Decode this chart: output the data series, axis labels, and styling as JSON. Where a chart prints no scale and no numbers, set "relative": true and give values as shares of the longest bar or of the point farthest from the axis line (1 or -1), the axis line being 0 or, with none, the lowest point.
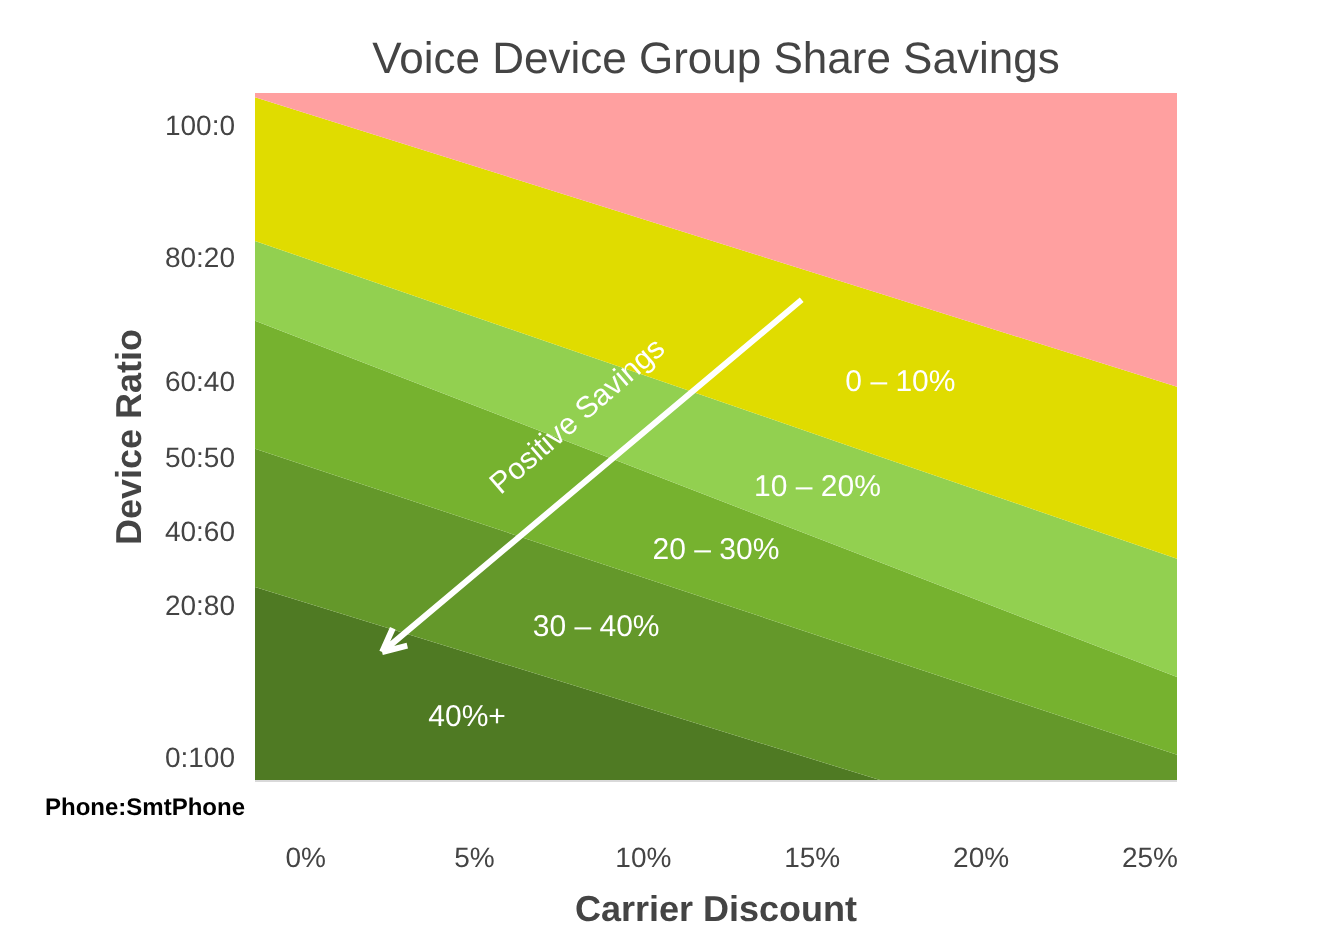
{
  "chart_data": {
    "type": "area",
    "stacked": true,
    "relative": true,
    "title": "Voice Device Group Share Savings",
    "xlabel": "Carrier Discount",
    "ylabel": "Device Ratio",
    "x": [
      -1.5,
      17.1,
      25.8
    ],
    "xlim": [
      -1.5,
      25.8
    ],
    "xticks": [
      {
        "value": 0,
        "label": "0%"
      },
      {
        "value": 5,
        "label": "5%"
      },
      {
        "value": 10,
        "label": "10%"
      },
      {
        "value": 15,
        "label": "15%"
      },
      {
        "value": 20,
        "label": "20%"
      },
      {
        "value": 25,
        "label": "25%"
      }
    ],
    "series": [
      {
        "name": "40%+",
        "color": "#4f7a23",
        "values": [
          0.282,
          0,
          0
        ]
      },
      {
        "name": "30 – 40%",
        "color": "#64982a",
        "values": [
          0.201,
          0.18,
          0.038
        ]
      },
      {
        "name": "20 – 30%",
        "color": "#76b22f",
        "values": [
          0.186,
          0.136,
          0.113
        ]
      },
      {
        "name": "10 – 20%",
        "color": "#92d050",
        "values": [
          0.116,
          0.154,
          0.172
        ]
      },
      {
        "name": "0 – 10%",
        "color": "#e0dc00",
        "values": [
          0.209,
          0.237,
          0.25
        ]
      },
      {
        "color": "#ffa0a0",
        "values": [
          0.006,
          0.293,
          0.427
        ]
      }
    ],
    "annotations": [
      "Positive Savings",
      "Phone:SmtPhone",
      "0:100",
      "20:80",
      "40:60",
      "50:50",
      "60:40",
      "80:20",
      "100:0"
    ]
  }
}
